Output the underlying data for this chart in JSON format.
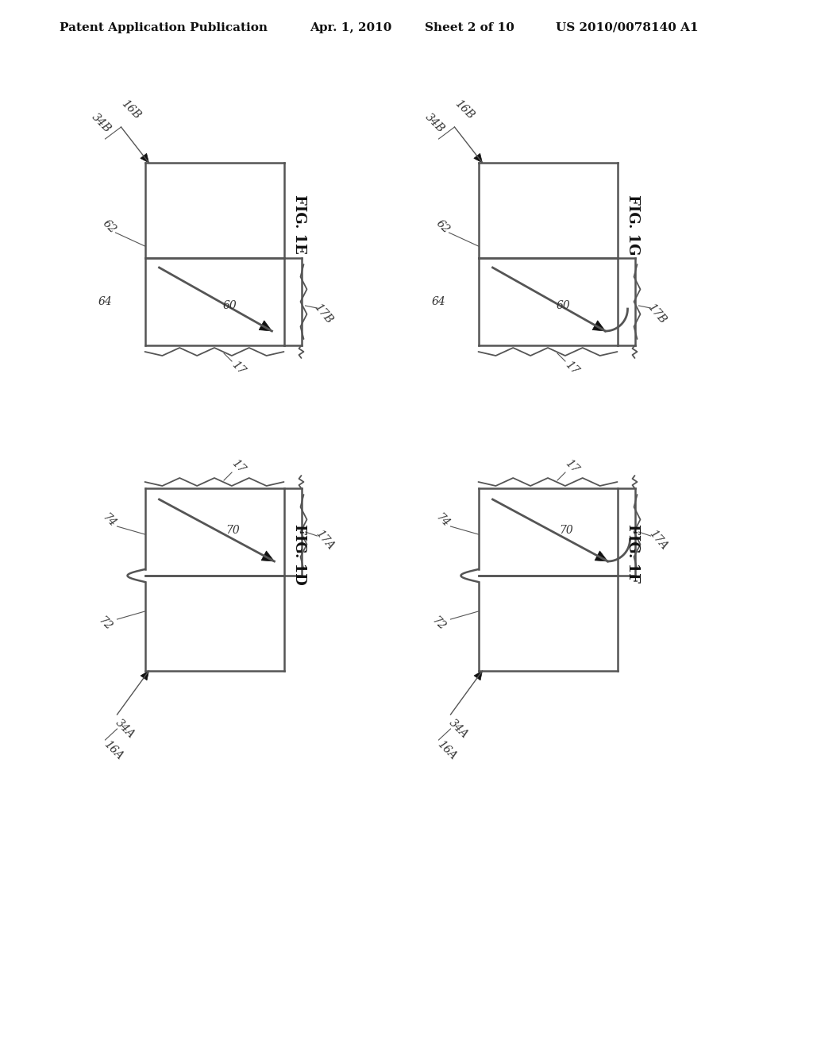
{
  "background_color": "#ffffff",
  "header_text": "Patent Application Publication",
  "header_date": "Apr. 1, 2010",
  "header_sheet": "Sheet 2 of 10",
  "header_patent": "US 2010/0078140 A1",
  "fig1e_label": "FIG. 1E",
  "fig1g_label": "FIG. 1G",
  "fig1d_label": "FIG. 1D",
  "fig1f_label": "FIG. 1F",
  "line_color": "#555555",
  "arrow_color": "#111111",
  "text_color": "#333333"
}
